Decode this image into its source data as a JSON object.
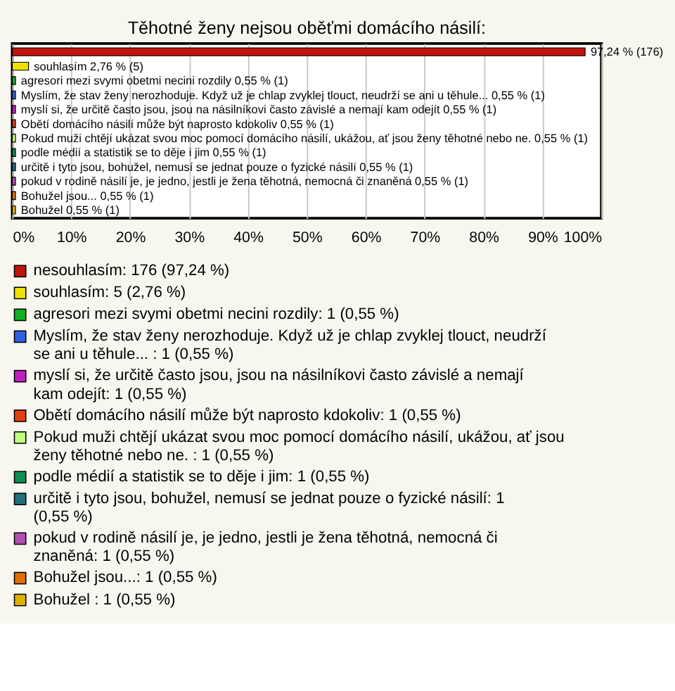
{
  "chart_data": {
    "type": "bar",
    "orientation": "horizontal",
    "title": "Těhotné ženy nejsou oběťmi domácího násilí:",
    "categories": [
      null,
      null,
      null,
      null,
      null,
      null,
      null,
      null,
      null,
      null,
      null,
      null
    ],
    "series": [
      {
        "name": "nesouhlasím: 176 (97,24 %)",
        "color": "#c0140c",
        "values": [
          97.24,
          null,
          null,
          null,
          null,
          null,
          null,
          null,
          null,
          null,
          null,
          null
        ],
        "value_labels": [
          "97,24 % (176)",
          null,
          null,
          null,
          null,
          null,
          null,
          null,
          null,
          null,
          null,
          null
        ]
      },
      {
        "name": "souhlasím: 5 (2,76 %)",
        "color": "#f0e000",
        "values": [
          null,
          2.76,
          null,
          null,
          null,
          null,
          null,
          null,
          null,
          null,
          null,
          null
        ],
        "value_labels": [
          null,
          "souhlasím 2,76 % (5)",
          null,
          null,
          null,
          null,
          null,
          null,
          null,
          null,
          null,
          null
        ]
      },
      {
        "name": "agresori mezi svymi obetmi necini rozdily: 1 (0,55 %)",
        "color": "#10b020",
        "values": [
          null,
          null,
          0.55,
          null,
          null,
          null,
          null,
          null,
          null,
          null,
          null,
          null
        ],
        "value_labels": [
          null,
          null,
          "agresori mezi svymi obetmi necini rozdily 0,55 % (1)",
          null,
          null,
          null,
          null,
          null,
          null,
          null,
          null,
          null
        ]
      },
      {
        "name": "Myslím, že stav ženy nerozhoduje. Když už je chlap zvyklej tlouct, neudrží se ani u těhule... : 1 (0,55 %)",
        "color": "#3060e0",
        "values": [
          null,
          null,
          null,
          0.55,
          null,
          null,
          null,
          null,
          null,
          null,
          null,
          null
        ],
        "value_labels": [
          null,
          null,
          null,
          "Myslím, že stav ženy nerozhoduje. Když už je chlap zvyklej tlouct, neudrží se ani u těhule...  0,55 % (1)",
          null,
          null,
          null,
          null,
          null,
          null,
          null,
          null
        ]
      },
      {
        "name": "myslí si, že určitě často jsou, jsou na násilníkovi často závislé a nemají kam odejít: 1 (0,55 %)",
        "color": "#c020c0",
        "values": [
          null,
          null,
          null,
          null,
          0.55,
          null,
          null,
          null,
          null,
          null,
          null,
          null
        ],
        "value_labels": [
          null,
          null,
          null,
          null,
          "myslí si, že určitě často jsou, jsou na násilníkovi často závislé a nemají kam odejít 0,55 % (1)",
          null,
          null,
          null,
          null,
          null,
          null,
          null
        ]
      },
      {
        "name": "Obětí domácího násilí může být naprosto kdokoliv: 1 (0,55 %)",
        "color": "#e04010",
        "values": [
          null,
          null,
          null,
          null,
          null,
          0.55,
          null,
          null,
          null,
          null,
          null,
          null
        ],
        "value_labels": [
          null,
          null,
          null,
          null,
          null,
          "Obětí domácího násilí může být naprosto kdokoliv 0,55 % (1)",
          null,
          null,
          null,
          null,
          null,
          null
        ]
      },
      {
        "name": "Pokud muži chtějí ukázat svou moc pomocí domácího násilí, ukážou, ať jsou ženy těhotné nebo ne. : 1 (0,55 %)",
        "color": "#c0ff80",
        "values": [
          null,
          null,
          null,
          null,
          null,
          null,
          0.55,
          null,
          null,
          null,
          null,
          null
        ],
        "value_labels": [
          null,
          null,
          null,
          null,
          null,
          null,
          "Pokud muži chtějí ukázat svou moc pomocí domácího násilí, ukážou, ať jsou ženy těhotné nebo ne.  0,55 % (1)",
          null,
          null,
          null,
          null,
          null
        ]
      },
      {
        "name": "podle médií a statistik se to děje i jim: 1 (0,55 %)",
        "color": "#109050",
        "values": [
          null,
          null,
          null,
          null,
          null,
          null,
          null,
          0.55,
          null,
          null,
          null,
          null
        ],
        "value_labels": [
          null,
          null,
          null,
          null,
          null,
          null,
          null,
          "podle médií a statistik se to děje i jim 0,55 % (1)",
          null,
          null,
          null,
          null
        ]
      },
      {
        "name": "určitě i tyto jsou, bohužel, nemusí se jednat pouze o fyzické násilí: 1 (0,55 %)",
        "color": "#207080",
        "values": [
          null,
          null,
          null,
          null,
          null,
          null,
          null,
          null,
          0.55,
          null,
          null,
          null
        ],
        "value_labels": [
          null,
          null,
          null,
          null,
          null,
          null,
          null,
          null,
          "určitě i tyto jsou, bohužel, nemusí se jednat pouze o fyzické násilí 0,55 % (1)",
          null,
          null,
          null
        ]
      },
      {
        "name": "pokud v rodině násilí je, je jedno, jestli je žena těhotná, nemocná či znaněná: 1 (0,55 %)",
        "color": "#b050b0",
        "values": [
          null,
          null,
          null,
          null,
          null,
          null,
          null,
          null,
          null,
          0.55,
          null,
          null
        ],
        "value_labels": [
          null,
          null,
          null,
          null,
          null,
          null,
          null,
          null,
          null,
          "pokud v rodině násilí je, je jedno, jestli je žena těhotná, nemocná či znaněná 0,55 % (1)",
          null,
          null
        ]
      },
      {
        "name": "Bohužel jsou...: 1 (0,55 %)",
        "color": "#e07000",
        "values": [
          null,
          null,
          null,
          null,
          null,
          null,
          null,
          null,
          null,
          null,
          0.55,
          null
        ],
        "value_labels": [
          null,
          null,
          null,
          null,
          null,
          null,
          null,
          null,
          null,
          null,
          "Bohužel jsou... 0,55 % (1)",
          null
        ]
      },
      {
        "name": "Bohužel : 1 (0,55 %)",
        "color": "#e0b000",
        "values": [
          null,
          null,
          null,
          null,
          null,
          null,
          null,
          null,
          null,
          null,
          null,
          0.55
        ],
        "value_labels": [
          null,
          null,
          null,
          null,
          null,
          null,
          null,
          null,
          null,
          null,
          null,
          "Bohužel  0,55 % (1)"
        ]
      }
    ],
    "xlim": [
      0,
      100
    ],
    "xticks": [
      {
        "value": 0,
        "label": "0%"
      },
      {
        "value": 10,
        "label": "10%"
      },
      {
        "value": 20,
        "label": "20%"
      },
      {
        "value": 30,
        "label": "30%"
      },
      {
        "value": 40,
        "label": "40%"
      },
      {
        "value": 50,
        "label": "50%"
      },
      {
        "value": 60,
        "label": "60%"
      },
      {
        "value": 70,
        "label": "70%"
      },
      {
        "value": 80,
        "label": "80%"
      },
      {
        "value": 90,
        "label": "90%"
      },
      {
        "value": 100,
        "label": "100%"
      }
    ],
    "grid": "x",
    "legend": "bottom",
    "tick_labels": "x"
  }
}
